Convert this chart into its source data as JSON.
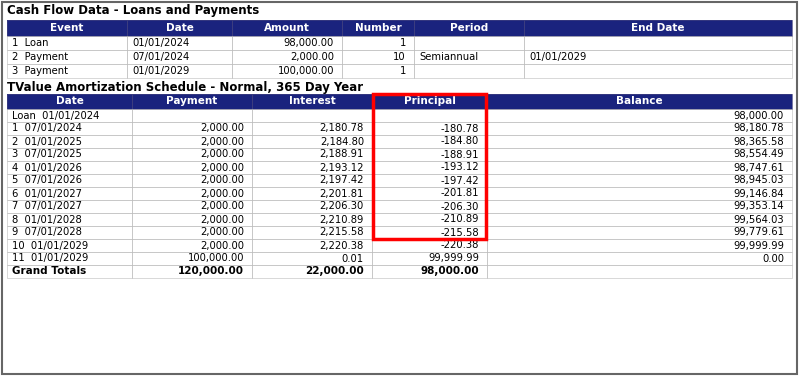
{
  "title1": "Cash Flow Data - Loans and Payments",
  "title2": "TValue Amortization Schedule - Normal, 365 Day Year",
  "header_bg": "#1a237e",
  "header_fg": "#ffffff",
  "cf_headers": [
    "Event",
    "Date",
    "Amount",
    "Number",
    "Period",
    "End Date"
  ],
  "cf_rows": [
    [
      "1  Loan",
      "01/01/2024",
      "98,000.00",
      "1",
      "",
      ""
    ],
    [
      "2  Payment",
      "07/01/2024",
      "2,000.00",
      "10",
      "Semiannual",
      "01/01/2029"
    ],
    [
      "3  Payment",
      "01/01/2029",
      "100,000.00",
      "1",
      "",
      ""
    ]
  ],
  "am_headers": [
    "Date",
    "Payment",
    "Interest",
    "Principal",
    "Balance"
  ],
  "am_rows": [
    [
      "Loan  01/01/2024",
      "",
      "",
      "",
      "98,000.00"
    ],
    [
      "1  07/01/2024",
      "2,000.00",
      "2,180.78",
      "-180.78",
      "98,180.78"
    ],
    [
      "2  01/01/2025",
      "2,000.00",
      "2,184.80",
      "-184.80",
      "98,365.58"
    ],
    [
      "3  07/01/2025",
      "2,000.00",
      "2,188.91",
      "-188.91",
      "98,554.49"
    ],
    [
      "4  01/01/2026",
      "2,000.00",
      "2,193.12",
      "-193.12",
      "98,747.61"
    ],
    [
      "5  07/01/2026",
      "2,000.00",
      "2,197.42",
      "-197.42",
      "98,945.03"
    ],
    [
      "6  01/01/2027",
      "2,000.00",
      "2,201.81",
      "-201.81",
      "99,146.84"
    ],
    [
      "7  07/01/2027",
      "2,000.00",
      "2,206.30",
      "-206.30",
      "99,353.14"
    ],
    [
      "8  01/01/2028",
      "2,000.00",
      "2,210.89",
      "-210.89",
      "99,564.03"
    ],
    [
      "9  07/01/2028",
      "2,000.00",
      "2,215.58",
      "-215.58",
      "99,779.61"
    ],
    [
      "10  01/01/2029",
      "2,000.00",
      "2,220.38",
      "-220.38",
      "99,999.99"
    ],
    [
      "11  01/01/2029",
      "100,000.00",
      "0.01",
      "99,999.99",
      "0.00"
    ]
  ],
  "grand_totals": [
    "Grand Totals",
    "120,000.00",
    "22,000.00",
    "98,000.00",
    ""
  ],
  "fig_w": 7.99,
  "fig_h": 3.76,
  "dpi": 100
}
